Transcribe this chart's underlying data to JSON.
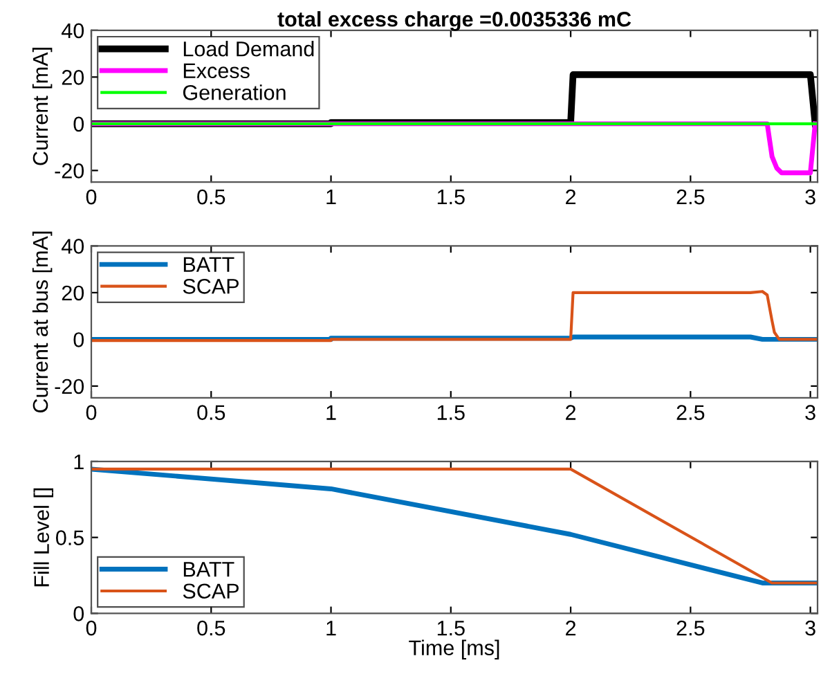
{
  "chart_data": [
    {
      "type": "line",
      "title": "total excess charge =0.0035336 mC",
      "ylabel": "Current [mA]",
      "xlim": [
        0,
        3.03
      ],
      "xticks": [
        0,
        0.5,
        1,
        1.5,
        2,
        2.5,
        3
      ],
      "ylim": [
        -25,
        40
      ],
      "yticks": [
        -20,
        0,
        20,
        40
      ],
      "legend": "top left",
      "grid": false,
      "series": [
        {
          "name": "Load Demand",
          "color": "#000000",
          "x": [
            0,
            1,
            1,
            2,
            2.01,
            3.0,
            3.02
          ],
          "values": [
            0,
            0,
            0.5,
            0.5,
            21,
            21,
            0
          ]
        },
        {
          "name": "Excess",
          "color": "#ff00ff",
          "x": [
            0,
            2.82,
            2.83,
            2.84,
            2.86,
            2.88,
            3.0,
            3.02
          ],
          "values": [
            0,
            0,
            -7,
            -14,
            -19,
            -21,
            -21,
            0
          ]
        },
        {
          "name": "Generation",
          "color": "#00ff00",
          "x": [
            0,
            3.03
          ],
          "values": [
            0,
            0
          ]
        }
      ]
    },
    {
      "type": "line",
      "ylabel": "Current at bus [mA]",
      "xlim": [
        0,
        3.03
      ],
      "xticks": [
        0,
        0.5,
        1,
        1.5,
        2,
        2.5,
        3
      ],
      "ylim": [
        -25,
        40
      ],
      "yticks": [
        -20,
        0,
        20,
        40
      ],
      "legend": "top left",
      "grid": false,
      "series": [
        {
          "name": "BATT",
          "color": "#0072bd",
          "x": [
            0,
            1,
            1,
            2,
            2.01,
            2.75,
            2.8,
            3.03
          ],
          "values": [
            0,
            0,
            0.5,
            0.5,
            1,
            1,
            0,
            0
          ]
        },
        {
          "name": "SCAP",
          "color": "#d95319",
          "x": [
            0,
            1,
            1,
            2,
            2.01,
            2.75,
            2.8,
            2.82,
            2.84,
            2.85,
            2.87,
            3.03
          ],
          "values": [
            -0.5,
            -0.5,
            0,
            0,
            20,
            20,
            20.5,
            19,
            8,
            3,
            0,
            0
          ]
        }
      ]
    },
    {
      "type": "line",
      "xlabel": "Time [ms]",
      "ylabel": "Fill Level []",
      "xlim": [
        0,
        3.03
      ],
      "xticks": [
        0,
        0.5,
        1,
        1.5,
        2,
        2.5,
        3
      ],
      "ylim": [
        0,
        1
      ],
      "yticks": [
        0,
        0.5,
        1
      ],
      "legend": "bottom left",
      "grid": false,
      "series": [
        {
          "name": "BATT",
          "color": "#0072bd",
          "x": [
            0,
            1,
            2,
            2.8,
            3.03
          ],
          "values": [
            0.95,
            0.82,
            0.52,
            0.2,
            0.2
          ]
        },
        {
          "name": "SCAP",
          "color": "#d95319",
          "x": [
            0,
            2,
            2.84,
            3.03
          ],
          "values": [
            0.95,
            0.95,
            0.2,
            0.2
          ]
        }
      ]
    }
  ]
}
